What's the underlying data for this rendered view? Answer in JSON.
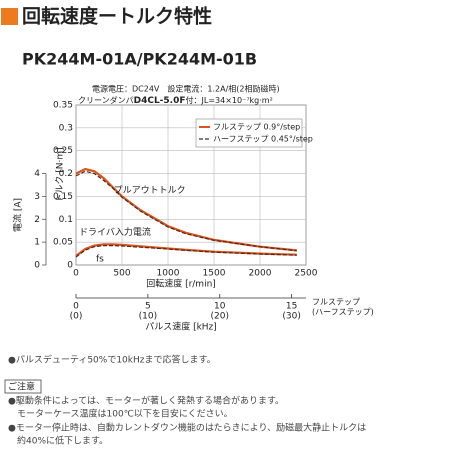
{
  "header": {
    "title": "回転速度ートルク特性"
  },
  "model": "PK244M-01A/PK244M-01B",
  "conditions": {
    "line1": "電源電圧：DC24V　設定電流：1.2A/相(2相励磁時)",
    "line2_prefix": "クリーンダンパ",
    "line2_bold": "D4CL-5.0F",
    "line2_suffix": "付：JL=34×10⁻⁷kg·m²"
  },
  "chart_data": {
    "type": "line",
    "xlabel": "回転速度 [r/min]",
    "ylabel": "トルク [N·m]",
    "y2label": "電流 [A]",
    "x": [
      0,
      100,
      200,
      300,
      400,
      500,
      700,
      1000,
      1200,
      1500,
      2000,
      2400
    ],
    "series": [
      {
        "name": "フルステップ 0.9°/step",
        "color": "#d9541e",
        "dash": false,
        "values": [
          0.2,
          0.21,
          0.205,
          0.19,
          0.17,
          0.15,
          0.12,
          0.085,
          0.07,
          0.055,
          0.04,
          0.032
        ]
      },
      {
        "name": "ハーフステップ 0.45°/step",
        "color": "#4a2a1a",
        "dash": true,
        "values": [
          0.195,
          0.205,
          0.2,
          0.185,
          0.168,
          0.148,
          0.118,
          0.083,
          0.068,
          0.054,
          0.04,
          0.031
        ]
      },
      {
        "color": "#d9541e",
        "dash": false,
        "axis": "y2",
        "values": [
          0.4,
          0.7,
          0.85,
          0.9,
          0.9,
          0.88,
          0.82,
          0.72,
          0.66,
          0.58,
          0.5,
          0.45
        ]
      },
      {
        "color": "#4a2a1a",
        "dash": true,
        "axis": "y2",
        "values": [
          0.35,
          0.65,
          0.8,
          0.85,
          0.85,
          0.83,
          0.78,
          0.7,
          0.64,
          0.56,
          0.48,
          0.43
        ]
      }
    ],
    "annotations": [
      "プルアウトトルク",
      "ドライバ入力電流",
      "fs"
    ],
    "xlim": [
      0,
      2500
    ],
    "xticks": [
      0,
      500,
      1000,
      1500,
      2000,
      2500
    ],
    "ylim": [
      0,
      0.35
    ],
    "yticks": [
      0,
      0.05,
      0.1,
      0.15,
      0.2,
      0.25,
      0.3,
      0.35
    ],
    "y2lim": [
      0,
      7
    ],
    "y2ticks": [
      0,
      1,
      2,
      3,
      4
    ],
    "x2label": "パルス速度 [kHz]",
    "x2lim": [
      0,
      16
    ],
    "x2ticks": [
      0,
      5,
      10,
      15
    ],
    "x2half_lim": [
      0,
      32
    ],
    "x2half_ticks": [
      {
        "value": 0,
        "label": "(0)"
      },
      {
        "value": 10,
        "label": "(10)"
      },
      {
        "value": 20,
        "label": "(20)"
      },
      {
        "value": 30,
        "label": "(30)"
      }
    ],
    "x2_row_labels": [
      "フルステップ",
      "(ハーフステップ)"
    ],
    "grid": true,
    "legend": "upper right"
  },
  "notes": {
    "pulse": "●パルスデューティ50%で10kHzまで応答します。",
    "caution_title": "ご注意",
    "caution": [
      "●駆動条件によっては、モーターが著しく発熱する場合があります。",
      "　モーターケース温度は100℃以下を目安にください。",
      "●モーター停止時は、自動カレントダウン機能のはたらきにより、励磁最大静止トルクは",
      "　約40%に低下します。"
    ]
  }
}
